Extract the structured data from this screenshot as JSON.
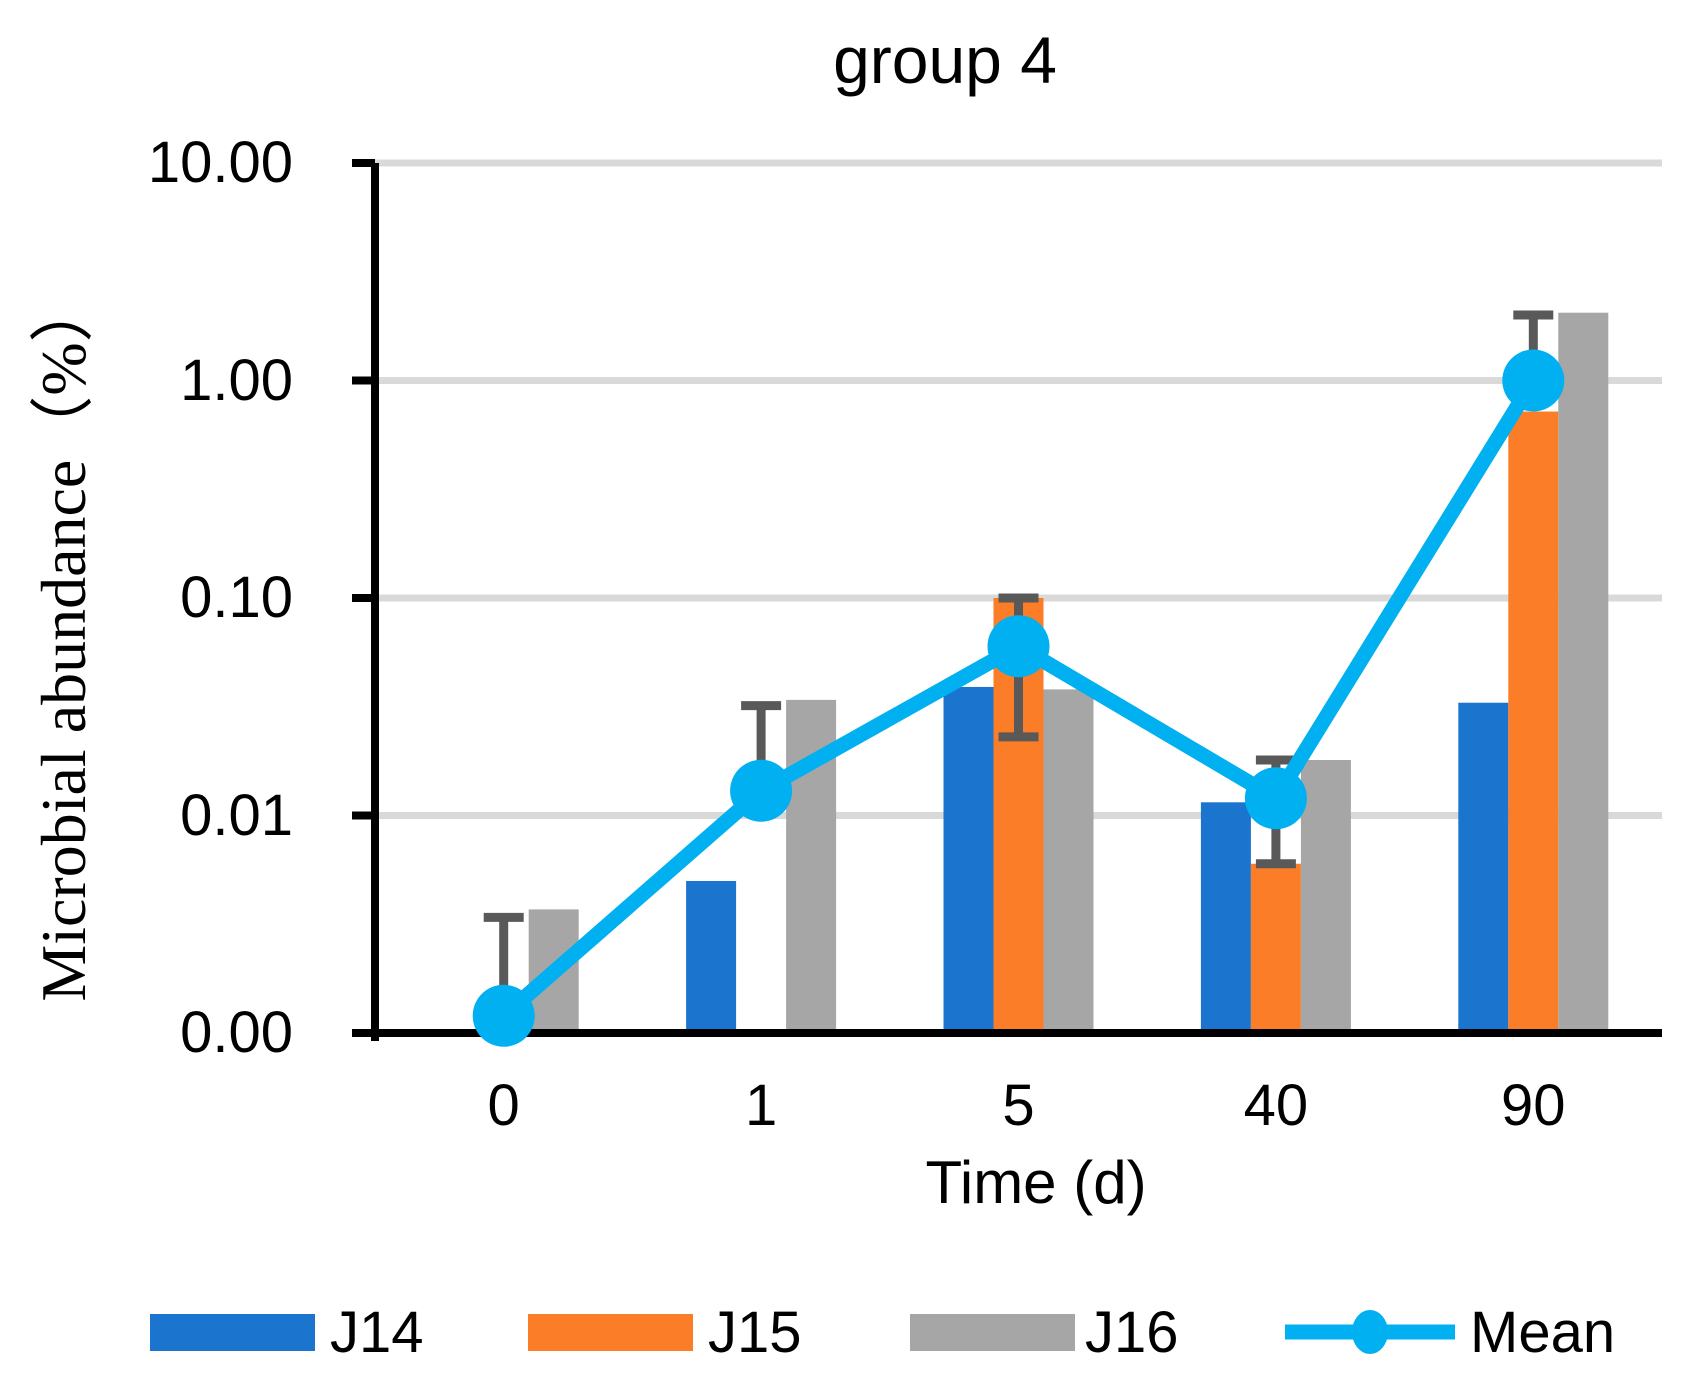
{
  "chart_data": {
    "type": "bar",
    "subtype": "grouped-bars-with-mean-line-log-scale",
    "title": "group 4",
    "xlabel": "Time (d)",
    "ylabel": "Microbial abundance（%）",
    "y_scale": "log",
    "ylim": [
      0.001,
      10
    ],
    "grid": true,
    "legend_position": "bottom",
    "categories": [
      "0",
      "1",
      "5",
      "40",
      "90"
    ],
    "y_ticks": [
      {
        "label": "10.00",
        "value": 10
      },
      {
        "label": "1.00",
        "value": 1
      },
      {
        "label": "0.10",
        "value": 0.1
      },
      {
        "label": "0.01",
        "value": 0.01
      },
      {
        "label": "0.00",
        "value": 0.001
      }
    ],
    "bar_series": [
      {
        "name": "J14",
        "color": "#1B74CE",
        "values": [
          null,
          0.005,
          0.039,
          0.0115,
          0.033
        ]
      },
      {
        "name": "J15",
        "color": "#FB7D28",
        "values": [
          null,
          null,
          0.1,
          0.006,
          0.72
        ]
      },
      {
        "name": "J16",
        "color": "#A6A6A6",
        "values": [
          0.0037,
          0.034,
          0.038,
          0.018,
          2.05
        ]
      }
    ],
    "line_series": {
      "name": "Mean",
      "color": "#00B0F0",
      "values": [
        0.0012,
        0.013,
        0.06,
        0.012,
        1.0
      ]
    },
    "error_bars": {
      "color": "#595959",
      "top": [
        0.0034,
        0.032,
        0.1,
        0.018,
        2.0
      ],
      "bottom": [
        null,
        null,
        0.023,
        0.006,
        null
      ]
    },
    "colors": {
      "gridline": "#D9D9D9",
      "axis": "#000000"
    }
  }
}
